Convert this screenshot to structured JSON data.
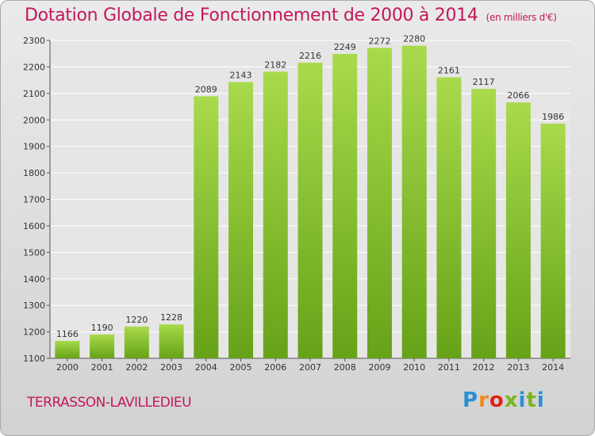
{
  "title": "Dotation Globale de Fonctionnement de 2000 à 2014",
  "subtitle": "(en milliers d'€)",
  "city": "TERRASSON-LAVILLEDIEU",
  "logo": {
    "p1": "P",
    "p2": "r",
    "p3": "o",
    "p4": "x",
    "p5": "i",
    "p6": "t",
    "p7": "i"
  },
  "colors": {
    "bar_light": "#a6d94a",
    "bar_dark": "#6aa51a",
    "title": "#c2185b"
  },
  "chart_data": {
    "type": "bar",
    "categories": [
      "2000",
      "2001",
      "2002",
      "2003",
      "2004",
      "2005",
      "2006",
      "2007",
      "2008",
      "2009",
      "2010",
      "2011",
      "2012",
      "2013",
      "2014"
    ],
    "values": [
      1166,
      1190,
      1220,
      1228,
      2089,
      2143,
      2182,
      2216,
      2249,
      2272,
      2280,
      2161,
      2117,
      2066,
      1986
    ],
    "ylim": [
      1100,
      2300
    ],
    "yticks": [
      1100,
      1200,
      1300,
      1400,
      1500,
      1600,
      1700,
      1800,
      1900,
      2000,
      2100,
      2200,
      2300
    ],
    "grid": true
  }
}
